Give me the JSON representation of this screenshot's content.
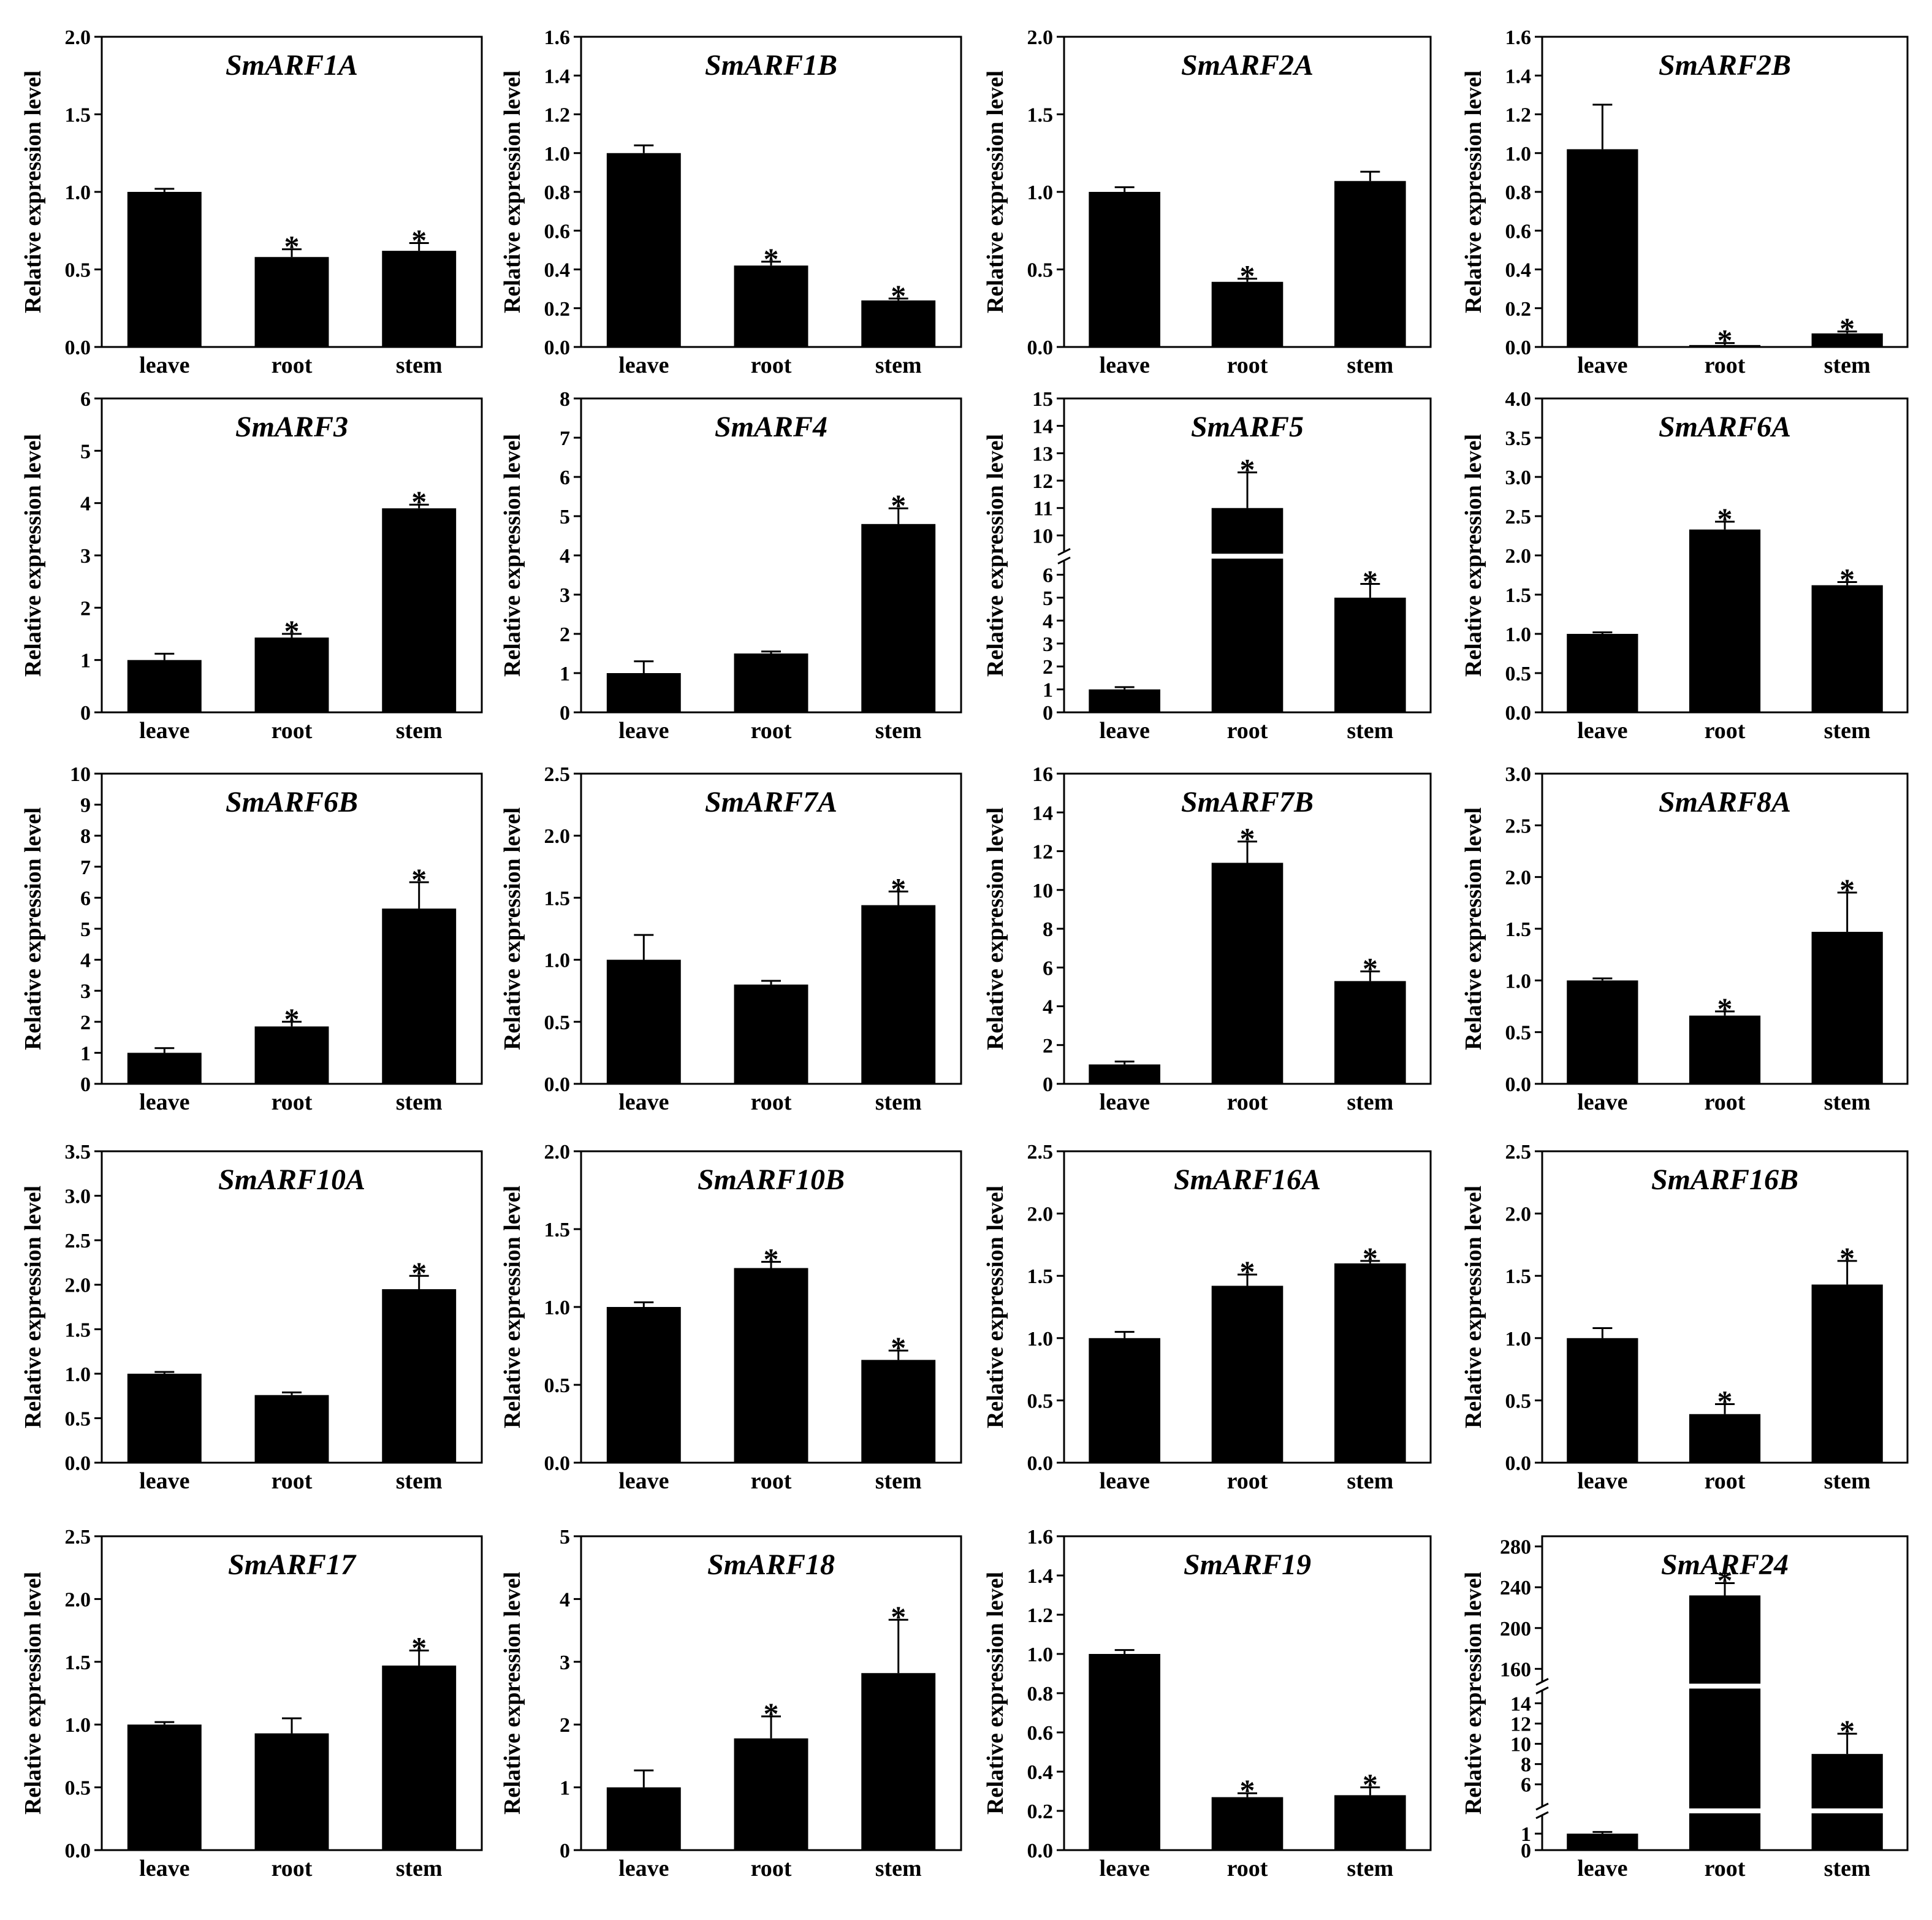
{
  "figure": {
    "ylabel": "Relative expression level",
    "categories": [
      "leave",
      "root",
      "stem"
    ]
  },
  "chart_data": [
    {
      "type": "bar",
      "title": "SmARF1A",
      "categories": [
        "leave",
        "root",
        "stem"
      ],
      "values": [
        1.0,
        0.58,
        0.62
      ],
      "errors": [
        0.02,
        0.05,
        0.05
      ],
      "significant": [
        false,
        true,
        true
      ],
      "ylim": [
        0,
        2.0
      ],
      "yticks": [
        "0.0",
        "0.5",
        "1.0",
        "1.5",
        "2.0"
      ]
    },
    {
      "type": "bar",
      "title": "SmARF1B",
      "categories": [
        "leave",
        "root",
        "stem"
      ],
      "values": [
        1.0,
        0.42,
        0.24
      ],
      "errors": [
        0.04,
        0.02,
        0.01
      ],
      "significant": [
        false,
        true,
        true
      ],
      "ylim": [
        0,
        1.6
      ],
      "yticks": [
        "0.0",
        "0.2",
        "0.4",
        "0.6",
        "0.8",
        "1.0",
        "1.2",
        "1.4",
        "1.6"
      ]
    },
    {
      "type": "bar",
      "title": "SmARF2A",
      "categories": [
        "leave",
        "root",
        "stem"
      ],
      "values": [
        1.0,
        0.42,
        1.07
      ],
      "errors": [
        0.03,
        0.02,
        0.06
      ],
      "significant": [
        false,
        true,
        false
      ],
      "ylim": [
        0,
        2.0
      ],
      "yticks": [
        "0.0",
        "0.5",
        "1.0",
        "1.5",
        "2.0"
      ]
    },
    {
      "type": "bar",
      "title": "SmARF2B",
      "categories": [
        "leave",
        "root",
        "stem"
      ],
      "values": [
        1.02,
        0.01,
        0.07
      ],
      "errors": [
        0.23,
        0.01,
        0.01
      ],
      "significant": [
        false,
        true,
        true
      ],
      "ylim": [
        0,
        1.6
      ],
      "yticks": [
        "0.0",
        "0.2",
        "0.4",
        "0.6",
        "0.8",
        "1.0",
        "1.2",
        "1.4",
        "1.6"
      ]
    },
    {
      "type": "bar",
      "title": "SmARF3",
      "categories": [
        "leave",
        "root",
        "stem"
      ],
      "values": [
        1.0,
        1.43,
        3.9
      ],
      "errors": [
        0.12,
        0.07,
        0.07
      ],
      "significant": [
        false,
        true,
        true
      ],
      "ylim": [
        0,
        6
      ],
      "yticks": [
        "0",
        "1",
        "2",
        "3",
        "4",
        "5",
        "6"
      ]
    },
    {
      "type": "bar",
      "title": "SmARF4",
      "categories": [
        "leave",
        "root",
        "stem"
      ],
      "values": [
        1.0,
        1.5,
        4.8
      ],
      "errors": [
        0.3,
        0.05,
        0.4
      ],
      "significant": [
        false,
        false,
        true
      ],
      "ylim": [
        0,
        8
      ],
      "yticks": [
        "0",
        "1",
        "2",
        "3",
        "4",
        "5",
        "6",
        "7",
        "8"
      ]
    },
    {
      "type": "bar",
      "title": "SmARF5",
      "categories": [
        "leave",
        "root",
        "stem"
      ],
      "values": [
        1.0,
        11.0,
        5.0
      ],
      "errors": [
        0.1,
        1.3,
        0.6
      ],
      "significant": [
        false,
        true,
        true
      ],
      "ylim": [
        0,
        15
      ],
      "axis_break": [
        6.5,
        9.5
      ],
      "yticks": [
        "0",
        "1",
        "2",
        "3",
        "4",
        "5",
        "6",
        "10",
        "11",
        "12",
        "13",
        "14",
        "15"
      ]
    },
    {
      "type": "bar",
      "title": "SmARF6A",
      "categories": [
        "leave",
        "root",
        "stem"
      ],
      "values": [
        1.0,
        2.33,
        1.62
      ],
      "errors": [
        0.02,
        0.1,
        0.04
      ],
      "significant": [
        false,
        true,
        true
      ],
      "ylim": [
        0,
        4.0
      ],
      "yticks": [
        "0.0",
        "0.5",
        "1.0",
        "1.5",
        "2.0",
        "2.5",
        "3.0",
        "3.5",
        "4.0"
      ]
    },
    {
      "type": "bar",
      "title": "SmARF6B",
      "categories": [
        "leave",
        "root",
        "stem"
      ],
      "values": [
        1.0,
        1.85,
        5.65
      ],
      "errors": [
        0.15,
        0.15,
        0.85
      ],
      "significant": [
        false,
        true,
        true
      ],
      "ylim": [
        0,
        10
      ],
      "yticks": [
        "0",
        "1",
        "2",
        "3",
        "4",
        "5",
        "6",
        "7",
        "8",
        "9",
        "10"
      ]
    },
    {
      "type": "bar",
      "title": "SmARF7A",
      "categories": [
        "leave",
        "root",
        "stem"
      ],
      "values": [
        1.0,
        0.8,
        1.44
      ],
      "errors": [
        0.2,
        0.03,
        0.11
      ],
      "significant": [
        false,
        false,
        true
      ],
      "ylim": [
        0,
        2.5
      ],
      "yticks": [
        "0.0",
        "0.5",
        "1.0",
        "1.5",
        "2.0",
        "2.5"
      ]
    },
    {
      "type": "bar",
      "title": "SmARF7B",
      "categories": [
        "leave",
        "root",
        "stem"
      ],
      "values": [
        1.0,
        11.4,
        5.3
      ],
      "errors": [
        0.15,
        1.1,
        0.5
      ],
      "significant": [
        false,
        true,
        true
      ],
      "ylim": [
        0,
        16
      ],
      "yticks": [
        "0",
        "2",
        "4",
        "6",
        "8",
        "10",
        "12",
        "14",
        "16"
      ]
    },
    {
      "type": "bar",
      "title": "SmARF8A",
      "categories": [
        "leave",
        "root",
        "stem"
      ],
      "values": [
        1.0,
        0.66,
        1.47
      ],
      "errors": [
        0.02,
        0.04,
        0.38
      ],
      "significant": [
        false,
        true,
        true
      ],
      "ylim": [
        0,
        3.0
      ],
      "yticks": [
        "0.0",
        "0.5",
        "1.0",
        "1.5",
        "2.0",
        "2.5",
        "3.0"
      ]
    },
    {
      "type": "bar",
      "title": "SmARF10A",
      "categories": [
        "leave",
        "root",
        "stem"
      ],
      "values": [
        1.0,
        0.76,
        1.95
      ],
      "errors": [
        0.02,
        0.03,
        0.15
      ],
      "significant": [
        false,
        false,
        true
      ],
      "ylim": [
        0,
        3.5
      ],
      "yticks": [
        "0.0",
        "0.5",
        "1.0",
        "1.5",
        "2.0",
        "2.5",
        "3.0",
        "3.5"
      ]
    },
    {
      "type": "bar",
      "title": "SmARF10B",
      "categories": [
        "leave",
        "root",
        "stem"
      ],
      "values": [
        1.0,
        1.25,
        0.66
      ],
      "errors": [
        0.03,
        0.04,
        0.06
      ],
      "significant": [
        false,
        true,
        true
      ],
      "ylim": [
        0,
        2.0
      ],
      "yticks": [
        "0.0",
        "0.5",
        "1.0",
        "1.5",
        "2.0"
      ]
    },
    {
      "type": "bar",
      "title": "SmARF16A",
      "categories": [
        "leave",
        "root",
        "stem"
      ],
      "values": [
        1.0,
        1.42,
        1.6
      ],
      "errors": [
        0.05,
        0.09,
        0.02
      ],
      "significant": [
        false,
        true,
        true
      ],
      "ylim": [
        0,
        2.5
      ],
      "yticks": [
        "0.0",
        "0.5",
        "1.0",
        "1.5",
        "2.0",
        "2.5"
      ]
    },
    {
      "type": "bar",
      "title": "SmARF16B",
      "categories": [
        "leave",
        "root",
        "stem"
      ],
      "values": [
        1.0,
        0.39,
        1.43
      ],
      "errors": [
        0.08,
        0.08,
        0.19
      ],
      "significant": [
        false,
        true,
        true
      ],
      "ylim": [
        0,
        2.5
      ],
      "yticks": [
        "0.0",
        "0.5",
        "1.0",
        "1.5",
        "2.0",
        "2.5"
      ]
    },
    {
      "type": "bar",
      "title": "SmARF17",
      "categories": [
        "leave",
        "root",
        "stem"
      ],
      "values": [
        1.0,
        0.93,
        1.47
      ],
      "errors": [
        0.02,
        0.12,
        0.12
      ],
      "significant": [
        false,
        false,
        true
      ],
      "ylim": [
        0,
        2.5
      ],
      "yticks": [
        "0.0",
        "0.5",
        "1.0",
        "1.5",
        "2.0",
        "2.5"
      ]
    },
    {
      "type": "bar",
      "title": "SmARF18",
      "categories": [
        "leave",
        "root",
        "stem"
      ],
      "values": [
        1.0,
        1.78,
        2.82
      ],
      "errors": [
        0.27,
        0.35,
        0.85
      ],
      "significant": [
        false,
        true,
        true
      ],
      "ylim": [
        0,
        5
      ],
      "yticks": [
        "0",
        "1",
        "2",
        "3",
        "4",
        "5"
      ]
    },
    {
      "type": "bar",
      "title": "SmARF19",
      "categories": [
        "leave",
        "root",
        "stem"
      ],
      "values": [
        1.0,
        0.27,
        0.28
      ],
      "errors": [
        0.02,
        0.02,
        0.04
      ],
      "significant": [
        false,
        true,
        true
      ],
      "ylim": [
        0,
        1.6
      ],
      "yticks": [
        "0.0",
        "0.2",
        "0.4",
        "0.6",
        "0.8",
        "1.0",
        "1.2",
        "1.4",
        "1.6"
      ]
    },
    {
      "type": "bar",
      "title": "SmARF24",
      "categories": [
        "leave",
        "root",
        "stem"
      ],
      "values": [
        1.0,
        232,
        9.0
      ],
      "errors": [
        0.1,
        12,
        2.0
      ],
      "significant": [
        false,
        true,
        true
      ],
      "ylim": [
        0,
        290
      ],
      "yticks": [
        "0",
        "1",
        "6",
        "8",
        "10",
        "12",
        "14",
        "160",
        "200",
        "240",
        "280"
      ]
    }
  ]
}
